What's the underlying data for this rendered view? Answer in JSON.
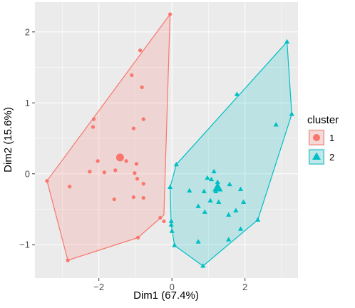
{
  "chart_data": {
    "type": "scatter",
    "title": "",
    "xlabel": "Dim1 (67.4%)",
    "ylabel": "Dim2 (15.6%)",
    "xlim": [
      -3.75,
      3.45
    ],
    "ylim": [
      -1.47,
      2.42
    ],
    "xticks": [
      -2,
      0,
      2
    ],
    "yticks": [
      -1,
      0,
      1,
      2
    ],
    "grid": true,
    "legend": {
      "title": "cluster",
      "placement": "right",
      "entries": [
        "1",
        "2"
      ]
    },
    "colors": {
      "1": "#F8766D",
      "2": "#00BFC4",
      "panel_bg": "#ebebeb",
      "grid": "#ffffff"
    },
    "series": [
      {
        "name": "1",
        "marker": "circle",
        "color": "#F8766D",
        "points": [
          {
            "x": -0.05,
            "y": 2.25
          },
          {
            "x": -0.87,
            "y": 1.74
          },
          {
            "x": -1.1,
            "y": 1.39
          },
          {
            "x": -0.82,
            "y": 1.22
          },
          {
            "x": -2.14,
            "y": 0.77
          },
          {
            "x": -0.78,
            "y": 0.77
          },
          {
            "x": -2.16,
            "y": 0.66
          },
          {
            "x": -1.05,
            "y": 0.64
          },
          {
            "x": -2.03,
            "y": 0.18
          },
          {
            "x": -1.25,
            "y": 0.18
          },
          {
            "x": -0.97,
            "y": 0.14
          },
          {
            "x": -2.25,
            "y": 0.03
          },
          {
            "x": -1.85,
            "y": 0.02
          },
          {
            "x": -1.55,
            "y": 0.05
          },
          {
            "x": -1.02,
            "y": 0.01
          },
          {
            "x": -0.95,
            "y": -0.07
          },
          {
            "x": -0.78,
            "y": -0.14
          },
          {
            "x": -2.8,
            "y": -0.18
          },
          {
            "x": -1.58,
            "y": -0.36
          },
          {
            "x": -1.05,
            "y": -0.33
          },
          {
            "x": -0.78,
            "y": -0.34
          },
          {
            "x": -3.42,
            "y": -0.1
          },
          {
            "x": -0.32,
            "y": -0.62
          },
          {
            "x": -0.22,
            "y": -0.67
          },
          {
            "x": -0.93,
            "y": -0.9
          },
          {
            "x": -2.85,
            "y": -1.22
          }
        ],
        "centroid": {
          "x": -1.42,
          "y": 0.23
        },
        "hull": [
          {
            "x": -0.05,
            "y": 2.25
          },
          {
            "x": -0.22,
            "y": -0.58
          },
          {
            "x": -0.93,
            "y": -0.9
          },
          {
            "x": -2.85,
            "y": -1.22
          },
          {
            "x": -3.42,
            "y": -0.1
          }
        ]
      },
      {
        "name": "2",
        "marker": "triangle",
        "color": "#00BFC4",
        "points": [
          {
            "x": 3.15,
            "y": 1.86
          },
          {
            "x": 1.78,
            "y": 1.12
          },
          {
            "x": 3.28,
            "y": 0.84
          },
          {
            "x": 2.85,
            "y": 0.69
          },
          {
            "x": 0.12,
            "y": 0.13
          },
          {
            "x": 1.15,
            "y": 0.03
          },
          {
            "x": 0.97,
            "y": -0.06
          },
          {
            "x": 1.08,
            "y": -0.08
          },
          {
            "x": 1.25,
            "y": -0.12
          },
          {
            "x": 1.58,
            "y": -0.15
          },
          {
            "x": 0.48,
            "y": -0.24
          },
          {
            "x": 0.88,
            "y": -0.25
          },
          {
            "x": 1.2,
            "y": -0.25
          },
          {
            "x": -0.05,
            "y": -0.19
          },
          {
            "x": 1.88,
            "y": -0.22
          },
          {
            "x": 1.05,
            "y": -0.38
          },
          {
            "x": 1.96,
            "y": -0.4
          },
          {
            "x": 1.28,
            "y": -0.4
          },
          {
            "x": 1.75,
            "y": -0.52
          },
          {
            "x": 0.72,
            "y": -0.46
          },
          {
            "x": 0.9,
            "y": -0.54
          },
          {
            "x": 1.55,
            "y": -0.58
          },
          {
            "x": 2.35,
            "y": -0.65
          },
          {
            "x": -0.02,
            "y": -0.72
          },
          {
            "x": 0.0,
            "y": -0.81
          },
          {
            "x": 1.88,
            "y": -0.78
          },
          {
            "x": 0.72,
            "y": -0.96
          },
          {
            "x": 1.55,
            "y": -0.93
          },
          {
            "x": 0.07,
            "y": -1.01
          },
          {
            "x": 0.85,
            "y": -1.3
          },
          {
            "x": -0.02,
            "y": -0.67
          }
        ],
        "centroid": {
          "x": 1.25,
          "y": -0.2
        },
        "hull": [
          {
            "x": 3.15,
            "y": 1.86
          },
          {
            "x": 3.28,
            "y": 0.84
          },
          {
            "x": 2.35,
            "y": -0.65
          },
          {
            "x": 0.85,
            "y": -1.3
          },
          {
            "x": 0.07,
            "y": -1.01
          },
          {
            "x": -0.02,
            "y": -0.72
          },
          {
            "x": -0.05,
            "y": -0.19
          },
          {
            "x": 0.12,
            "y": 0.13
          }
        ]
      }
    ]
  }
}
